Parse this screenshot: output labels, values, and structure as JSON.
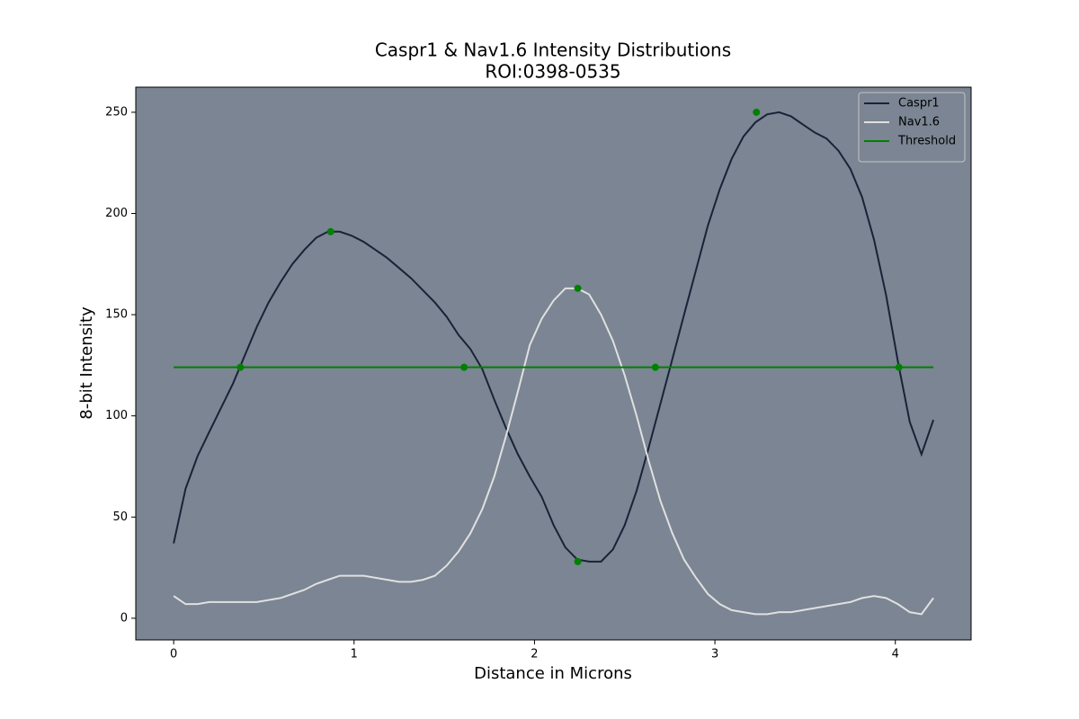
{
  "chart_data": {
    "type": "line",
    "title": "Caspr1 & Nav1.6 Intensity Distributions",
    "subtitle": "ROI:0398-0535",
    "xlabel": "Distance in Microns",
    "ylabel": "8-bit Intensity",
    "x": [
      0,
      0.066,
      0.132,
      0.197,
      0.263,
      0.329,
      0.395,
      0.461,
      0.526,
      0.592,
      0.658,
      0.724,
      0.79,
      0.855,
      0.921,
      0.987,
      1.053,
      1.119,
      1.184,
      1.25,
      1.316,
      1.382,
      1.448,
      1.513,
      1.579,
      1.645,
      1.711,
      1.777,
      1.842,
      1.908,
      1.974,
      2.04,
      2.106,
      2.171,
      2.237,
      2.303,
      2.369,
      2.435,
      2.5,
      2.566,
      2.632,
      2.698,
      2.764,
      2.829,
      2.895,
      2.961,
      3.027,
      3.093,
      3.158,
      3.224,
      3.29,
      3.356,
      3.422,
      3.487,
      3.553,
      3.619,
      3.685,
      3.751,
      3.816,
      3.882,
      3.948,
      4.014,
      4.08,
      4.145,
      4.211
    ],
    "series": [
      {
        "name": "Caspr1",
        "color": "#1a2238",
        "values": [
          37,
          64,
          80,
          92,
          104,
          116,
          130,
          144,
          156,
          166,
          175,
          182,
          188,
          191,
          191,
          189,
          186,
          182,
          178,
          173,
          168,
          162,
          156,
          149,
          140,
          133,
          123,
          108,
          94,
          81,
          70,
          60,
          46,
          35,
          29,
          28,
          28,
          34,
          46,
          63,
          84,
          106,
          128,
          150,
          172,
          194,
          212,
          227,
          238,
          245,
          249,
          250,
          248,
          244,
          240,
          237,
          231,
          222,
          208,
          187,
          160,
          127,
          97,
          81,
          98
        ]
      },
      {
        "name": "Nav1.6",
        "color": "#e0e0e0",
        "values": [
          11,
          7,
          7,
          8,
          8,
          8,
          8,
          8,
          9,
          10,
          12,
          14,
          17,
          19,
          21,
          21,
          21,
          20,
          19,
          18,
          18,
          19,
          21,
          26,
          33,
          42,
          54,
          70,
          90,
          112,
          135,
          148,
          157,
          163,
          163,
          160,
          150,
          137,
          120,
          100,
          78,
          58,
          42,
          29,
          20,
          12,
          7,
          4,
          3,
          2,
          2,
          3,
          3,
          4,
          5,
          6,
          7,
          8,
          10,
          11,
          10,
          7,
          3,
          2,
          10
        ]
      },
      {
        "name": "Threshold",
        "color": "#008000",
        "x": [
          0,
          4.211
        ],
        "values": [
          124,
          124
        ]
      }
    ],
    "points": {
      "color": "#008000",
      "x": [
        0.37,
        1.61,
        2.67,
        4.02,
        0.87,
        2.24,
        2.24,
        3.23
      ],
      "y": [
        124,
        124,
        124,
        124,
        191,
        163,
        28,
        250
      ]
    },
    "xlim": [
      -0.21,
      4.42
    ],
    "ylim": [
      -10.7,
      262.4
    ],
    "xticks": [
      0,
      1,
      2,
      3,
      4
    ],
    "yticks": [
      0,
      50,
      100,
      150,
      200,
      250
    ],
    "background": "#7b8593",
    "legend": "upper-right"
  }
}
